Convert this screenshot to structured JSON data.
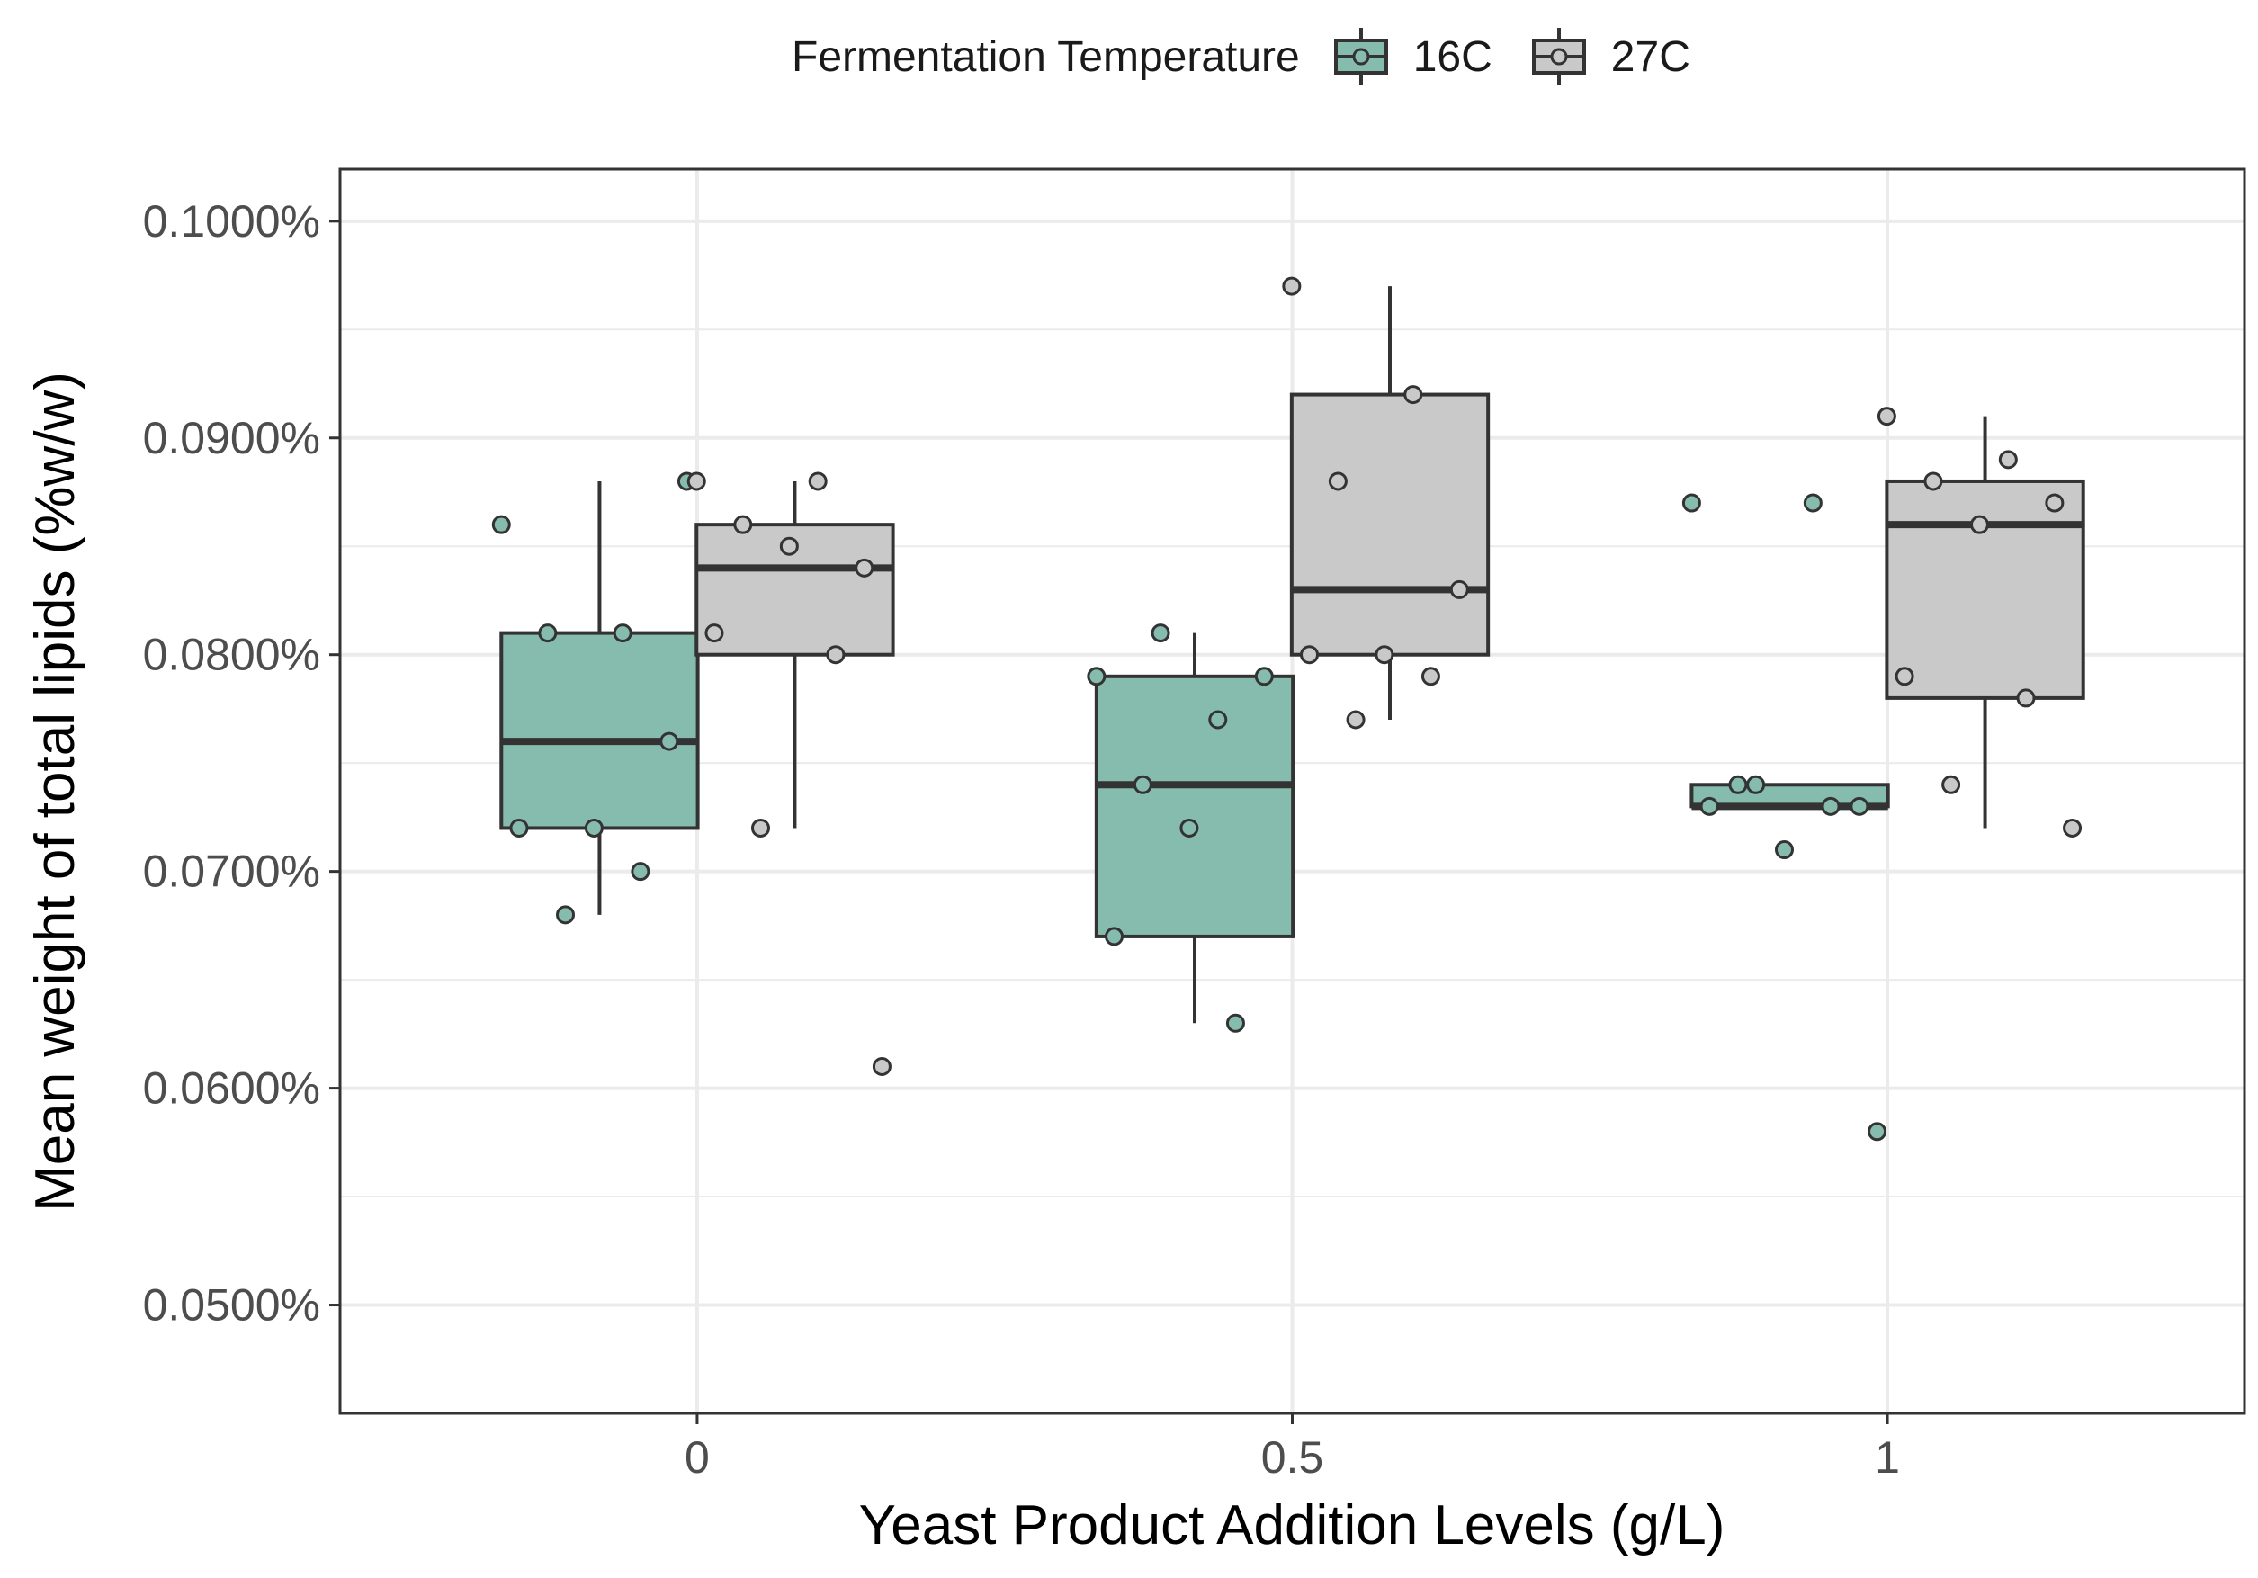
{
  "chart_data": {
    "type": "boxplot",
    "title": "",
    "xlabel": "Yeast Product Addition Levels (g/L)",
    "ylabel": "Mean weight of total lipids (%w/w)",
    "ylim": [
      0.045,
      0.1024
    ],
    "yticks": [
      0.05,
      0.06,
      0.07,
      0.08,
      0.09,
      0.1
    ],
    "ytick_labels": [
      "0.0500%",
      "0.0600%",
      "0.0700%",
      "0.0800%",
      "0.0900%",
      "0.1000%"
    ],
    "categories": [
      "0",
      "0.5",
      "1"
    ],
    "legend": {
      "title": "Fermentation Temperature",
      "position": "top",
      "entries": [
        "16C",
        "27C"
      ]
    },
    "series": [
      {
        "name": "16C",
        "color": "#86bcad",
        "boxes": [
          {
            "category": "0",
            "q1": 0.072,
            "median": 0.076,
            "q3": 0.081,
            "whisker_low": 0.068,
            "whisker_high": 0.088,
            "points": [
              0.086,
              0.081,
              0.081,
              0.076,
              0.072,
              0.072,
              0.07,
              0.068,
              0.088
            ]
          },
          {
            "category": "0.5",
            "q1": 0.067,
            "median": 0.074,
            "q3": 0.079,
            "whisker_low": 0.063,
            "whisker_high": 0.081,
            "points": [
              0.079,
              0.077,
              0.074,
              0.079,
              0.072,
              0.067,
              0.063,
              0.081
            ]
          },
          {
            "category": "1",
            "q1": 0.073,
            "median": 0.073,
            "q3": 0.074,
            "whisker_low": 0.073,
            "whisker_high": 0.074,
            "points": [
              0.087,
              0.087,
              0.074,
              0.073,
              0.071,
              0.073,
              0.073,
              0.074,
              0.058
            ]
          }
        ]
      },
      {
        "name": "27C",
        "color": "#c9c9c9",
        "boxes": [
          {
            "category": "0",
            "q1": 0.08,
            "median": 0.084,
            "q3": 0.086,
            "whisker_low": 0.072,
            "whisker_high": 0.088,
            "points": [
              0.088,
              0.088,
              0.086,
              0.084,
              0.085,
              0.081,
              0.08,
              0.072,
              0.061
            ]
          },
          {
            "category": "0.5",
            "q1": 0.08,
            "median": 0.083,
            "q3": 0.092,
            "whisker_low": 0.077,
            "whisker_high": 0.097,
            "points": [
              0.097,
              0.092,
              0.088,
              0.083,
              0.08,
              0.08,
              0.079,
              0.077
            ]
          },
          {
            "category": "1",
            "q1": 0.078,
            "median": 0.086,
            "q3": 0.088,
            "whisker_low": 0.072,
            "whisker_high": 0.091,
            "points": [
              0.091,
              0.089,
              0.088,
              0.087,
              0.086,
              0.079,
              0.078,
              0.074,
              0.072
            ]
          }
        ]
      }
    ]
  }
}
